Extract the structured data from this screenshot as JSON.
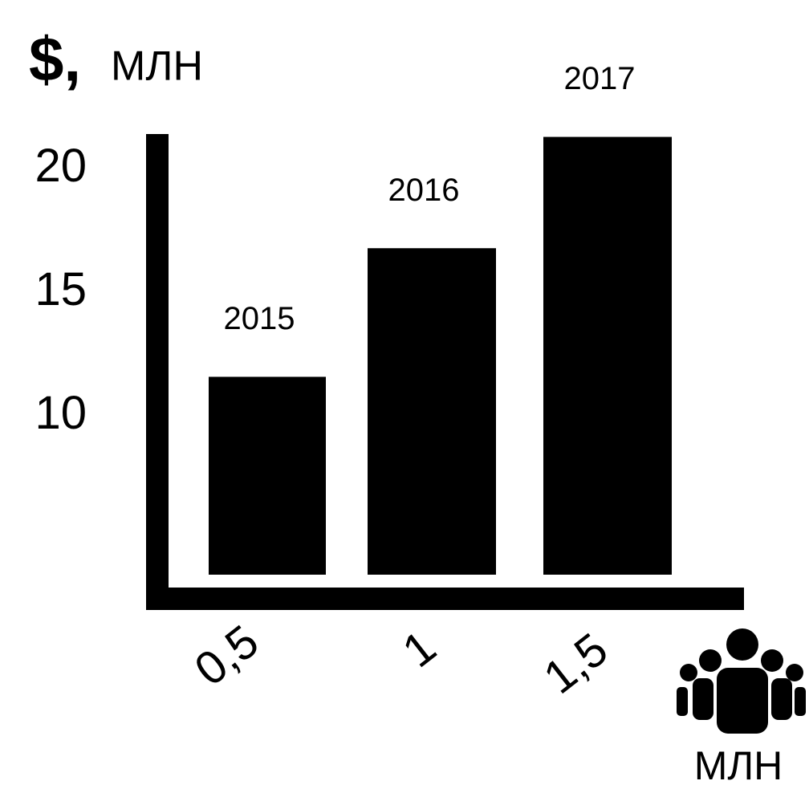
{
  "chart_data": {
    "type": "bar",
    "y_label_symbol": "$,",
    "y_label_unit": "МЛН",
    "x_label_unit": "МЛН",
    "categories": [
      "0,5",
      "1",
      "1,5"
    ],
    "bar_labels": [
      "2015",
      "2016",
      "2017"
    ],
    "values": [
      11.6,
      16.8,
      21.3
    ],
    "color": "#000000",
    "ylim": [
      3.6,
      22
    ],
    "yticks": [
      10,
      15,
      20
    ],
    "grid": false
  }
}
